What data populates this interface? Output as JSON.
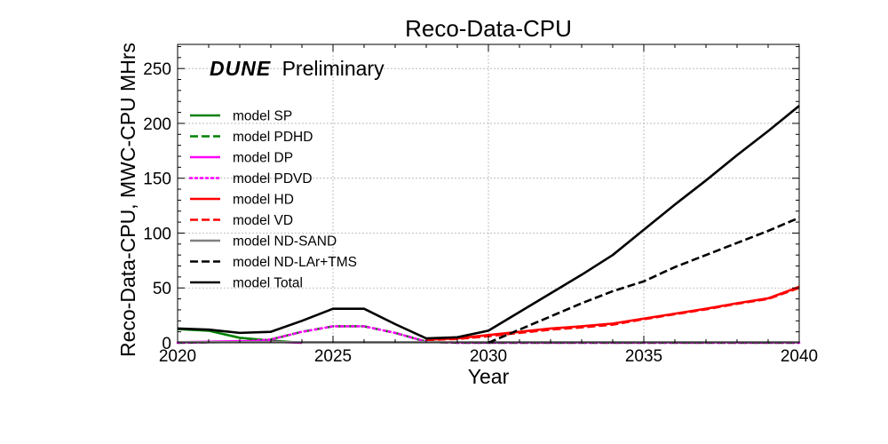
{
  "chart_data": {
    "type": "line",
    "title": "Reco-Data-CPU",
    "xlabel": "Year",
    "ylabel": "Reco-Data-CPU, MWC-CPU MHrs",
    "xlim": [
      2020,
      2040
    ],
    "ylim": [
      0,
      272
    ],
    "xticks": [
      2020,
      2025,
      2030,
      2035,
      2040
    ],
    "yticks": [
      0,
      50,
      100,
      150,
      200,
      250
    ],
    "grid": true,
    "legend_placement": "upper-left",
    "annotation": {
      "brand": "DUNE",
      "text": "Preliminary"
    },
    "series": [
      {
        "name": "model SP",
        "color": "#008000",
        "dash": "solid",
        "x": [
          2020,
          2021,
          2022,
          2023,
          2024
        ],
        "y": [
          12.5,
          11,
          4.5,
          2,
          0
        ]
      },
      {
        "name": "model PDHD",
        "color": "#008000",
        "dash": "dashed",
        "x": [
          2020,
          2021,
          2022,
          2023,
          2024,
          2025,
          2026,
          2027,
          2028,
          2029,
          2030,
          2031,
          2032,
          2033,
          2034,
          2035,
          2036,
          2037,
          2038,
          2039,
          2040
        ],
        "y": [
          0,
          0.5,
          1,
          3,
          10,
          15,
          15,
          9,
          1,
          0,
          0,
          0,
          0,
          0,
          0,
          0,
          0,
          0,
          0,
          0,
          0
        ]
      },
      {
        "name": "model DP",
        "color": "#ff00ff",
        "dash": "solid",
        "x": [
          2020,
          2021,
          2022,
          2023,
          2024
        ],
        "y": [
          0.5,
          1,
          1.5,
          1,
          0
        ]
      },
      {
        "name": "model PDVD",
        "color": "#ff00ff",
        "dash": "dotted",
        "x": [
          2020,
          2021,
          2022,
          2023,
          2024,
          2025,
          2026,
          2027,
          2028,
          2029,
          2030,
          2031,
          2032,
          2033,
          2034,
          2035,
          2036,
          2037,
          2038,
          2039,
          2040
        ],
        "y": [
          0,
          0.5,
          1,
          3,
          10,
          15,
          15,
          9,
          1,
          0,
          0,
          0,
          0,
          0,
          0,
          0,
          0,
          0,
          0,
          0,
          0
        ]
      },
      {
        "name": "model HD",
        "color": "#ff0000",
        "dash": "solid",
        "x": [
          2028,
          2029,
          2030,
          2031,
          2032,
          2033,
          2034,
          2035,
          2036,
          2037,
          2038,
          2039,
          2040
        ],
        "y": [
          3,
          4,
          7,
          10,
          13,
          15,
          17.5,
          22,
          26.5,
          31,
          36,
          40.5,
          51
        ]
      },
      {
        "name": "model VD",
        "color": "#ff0000",
        "dash": "dashed",
        "x": [
          2028,
          2029,
          2030,
          2031,
          2032,
          2033,
          2034,
          2035,
          2036,
          2037,
          2038,
          2039,
          2040
        ],
        "y": [
          2.5,
          3.5,
          6,
          9,
          12,
          14,
          16.5,
          21.5,
          26,
          30.5,
          35.5,
          40,
          50
        ]
      },
      {
        "name": "model ND-SAND",
        "color": "#808080",
        "dash": "solid",
        "x": [
          2020,
          2025,
          2030,
          2035,
          2040
        ],
        "y": [
          0.6,
          0.6,
          0.6,
          0.6,
          0.6
        ]
      },
      {
        "name": "model ND-LAr+TMS",
        "color": "#000000",
        "dash": "dashed",
        "x": [
          2030,
          2031,
          2032,
          2033,
          2034,
          2035,
          2036,
          2037,
          2038,
          2039,
          2040
        ],
        "y": [
          0,
          12,
          24,
          36,
          47,
          56,
          69,
          80,
          91,
          102,
          114
        ]
      },
      {
        "name": "model Total",
        "color": "#000000",
        "dash": "solid",
        "x": [
          2020,
          2021,
          2022,
          2023,
          2024,
          2025,
          2026,
          2027,
          2028,
          2029,
          2030,
          2031,
          2032,
          2033,
          2034,
          2035,
          2036,
          2037,
          2038,
          2039,
          2040
        ],
        "y": [
          13,
          12,
          9,
          10,
          20,
          31,
          31,
          17,
          4,
          5,
          11,
          28,
          45,
          62,
          80,
          103,
          126,
          148,
          171,
          193,
          216
        ]
      }
    ]
  }
}
